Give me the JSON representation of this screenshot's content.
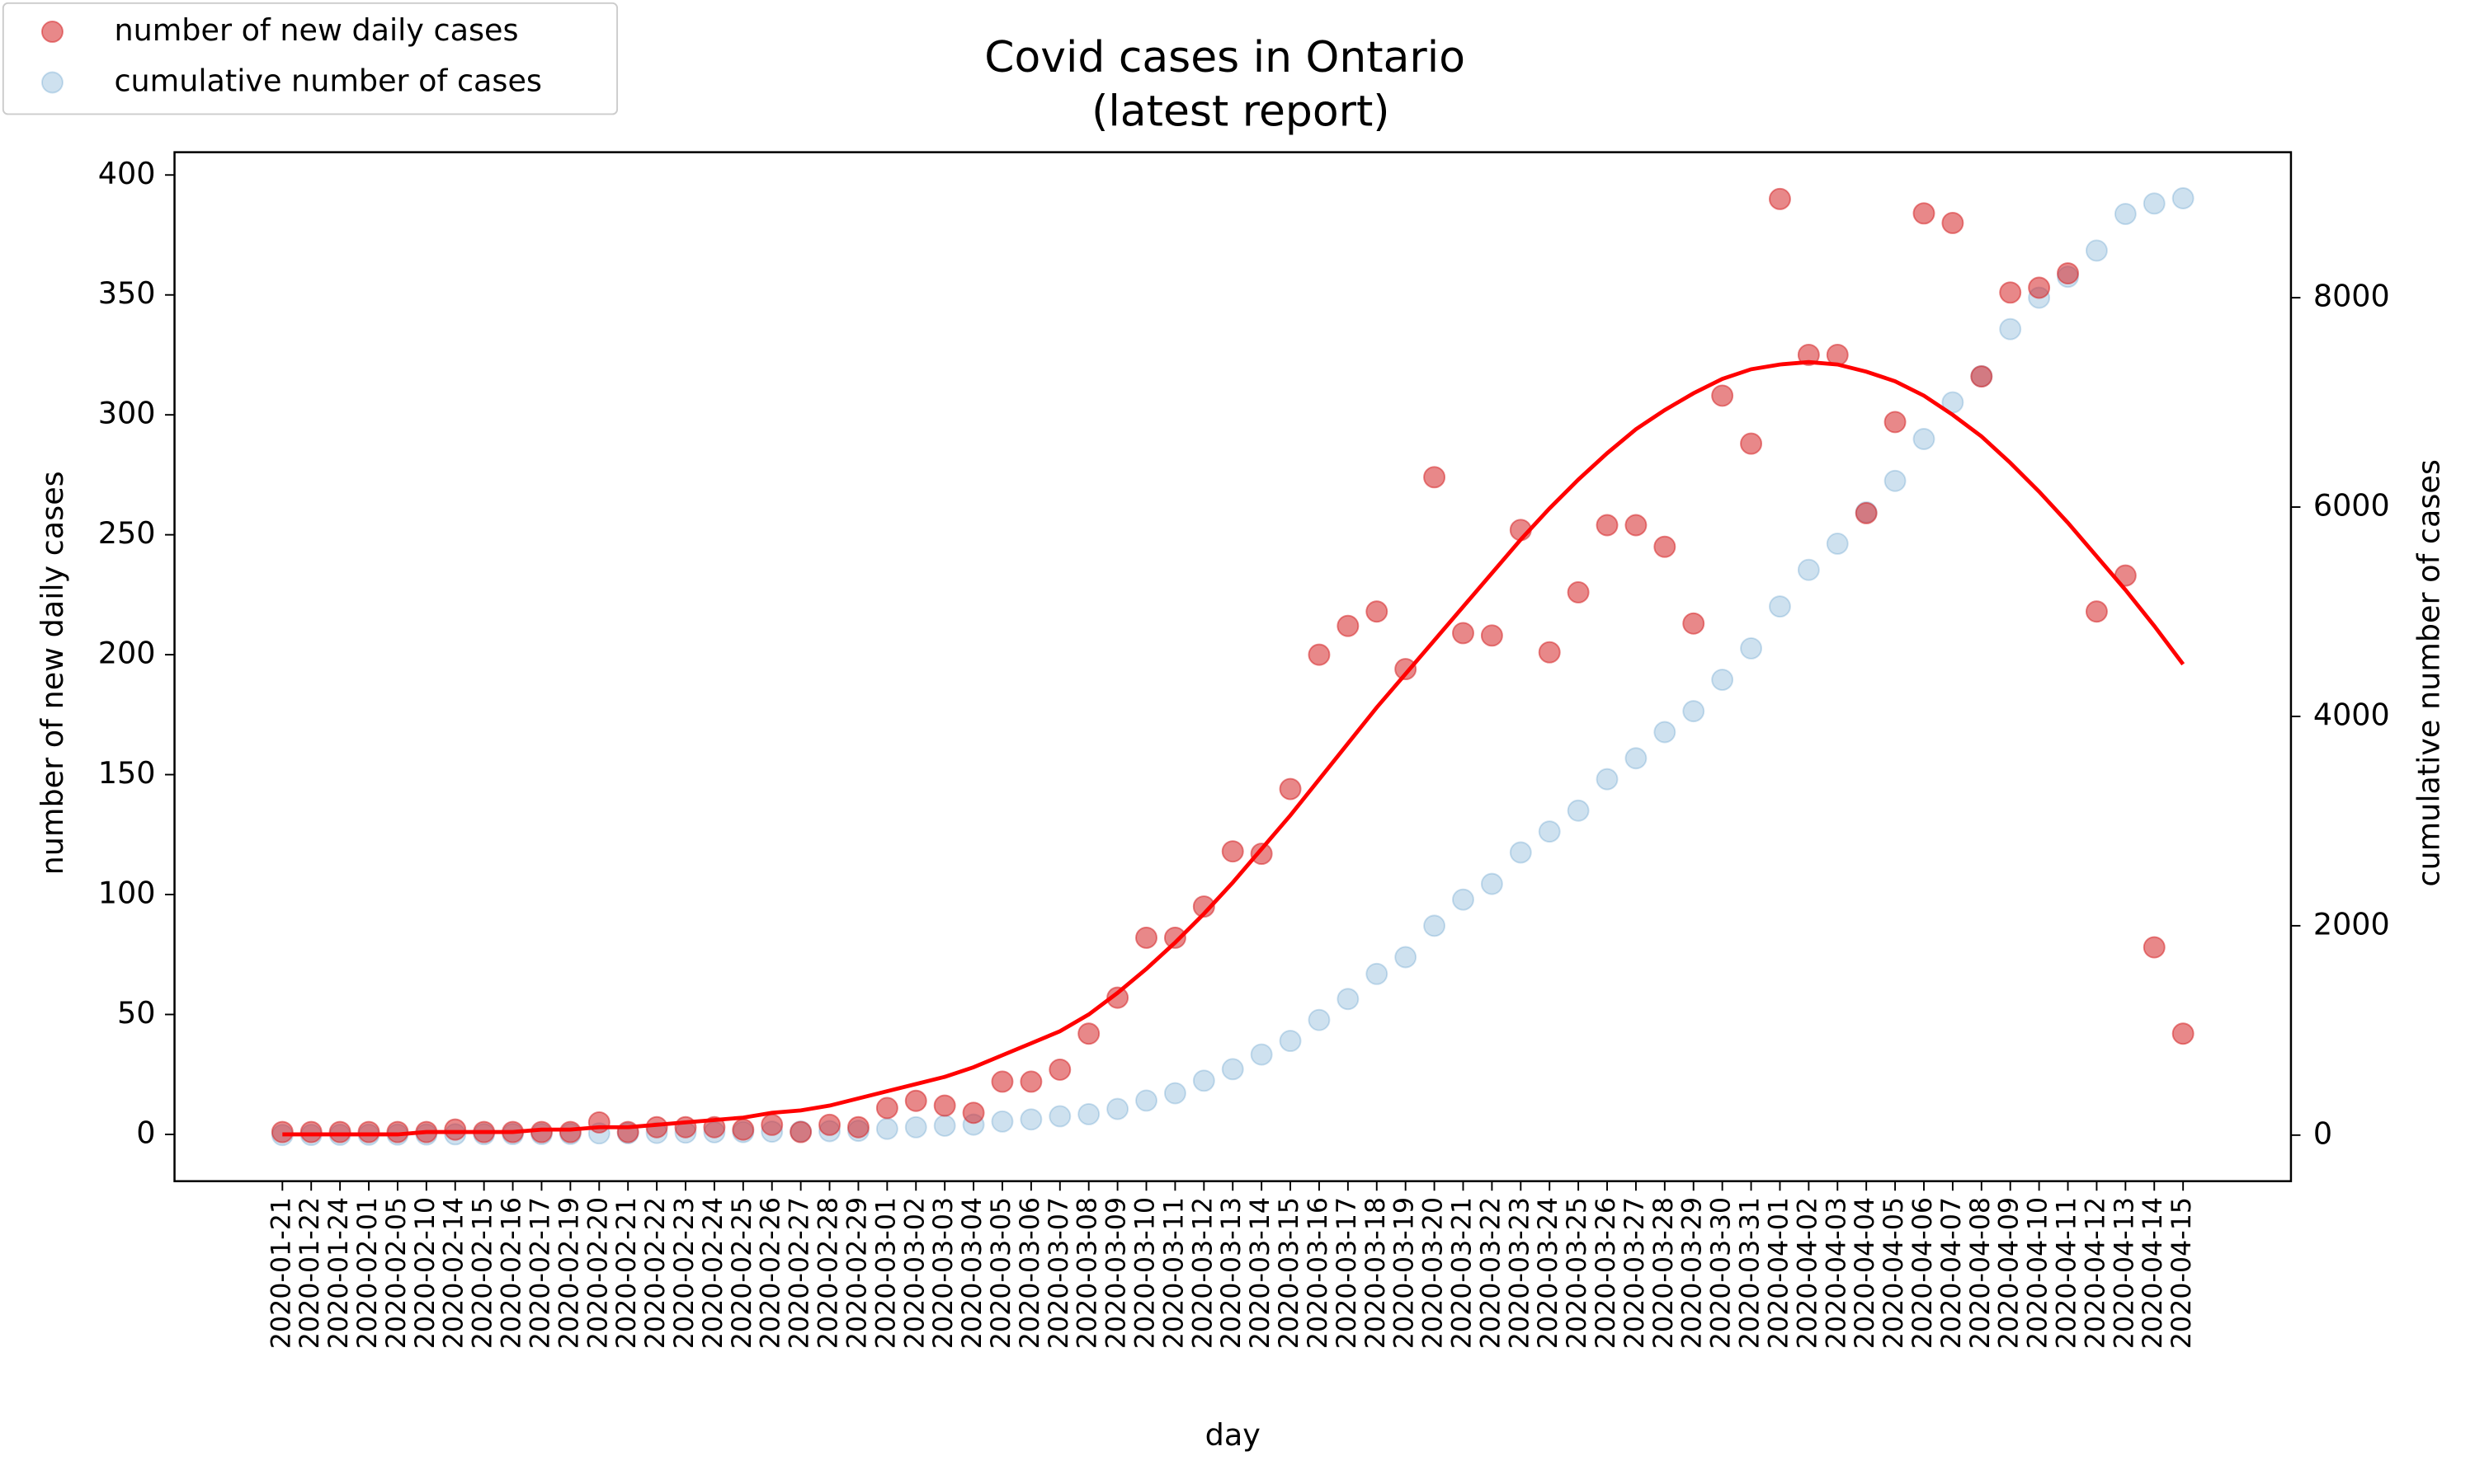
{
  "chart_data": {
    "type": "scatter",
    "title": "Covid cases in Ontario",
    "subtitle": "(latest report)",
    "xlabel": "day",
    "ylabel": "number of new daily cases",
    "y2label": "cumulative number of cases",
    "categories": [
      "2020-01-21",
      "2020-01-22",
      "2020-01-24",
      "2020-02-01",
      "2020-02-05",
      "2020-02-10",
      "2020-02-14",
      "2020-02-15",
      "2020-02-16",
      "2020-02-17",
      "2020-02-19",
      "2020-02-20",
      "2020-02-21",
      "2020-02-22",
      "2020-02-23",
      "2020-02-24",
      "2020-02-25",
      "2020-02-26",
      "2020-02-27",
      "2020-02-28",
      "2020-02-29",
      "2020-03-01",
      "2020-03-02",
      "2020-03-03",
      "2020-03-04",
      "2020-03-05",
      "2020-03-06",
      "2020-03-07",
      "2020-03-08",
      "2020-03-09",
      "2020-03-10",
      "2020-03-11",
      "2020-03-12",
      "2020-03-13",
      "2020-03-14",
      "2020-03-15",
      "2020-03-16",
      "2020-03-17",
      "2020-03-18",
      "2020-03-19",
      "2020-03-20",
      "2020-03-21",
      "2020-03-22",
      "2020-03-23",
      "2020-03-24",
      "2020-03-25",
      "2020-03-26",
      "2020-03-27",
      "2020-03-28",
      "2020-03-29",
      "2020-03-30",
      "2020-03-31",
      "2020-04-01",
      "2020-04-02",
      "2020-04-03",
      "2020-04-04",
      "2020-04-05",
      "2020-04-06",
      "2020-04-07",
      "2020-04-08",
      "2020-04-09",
      "2020-04-10",
      "2020-04-11",
      "2020-04-12",
      "2020-04-13",
      "2020-04-14",
      "2020-04-15"
    ],
    "series": [
      {
        "name": "number of new daily cases",
        "color": "#d62728",
        "opacity": 0.55,
        "axis": "y",
        "values": [
          1,
          1,
          1,
          1,
          1,
          1,
          2,
          1,
          1,
          1,
          1,
          5,
          1,
          3,
          3,
          3,
          2,
          4,
          1,
          4,
          3,
          11,
          14,
          12,
          9,
          22,
          22,
          27,
          42,
          57,
          82,
          82,
          95,
          118,
          117,
          144,
          200,
          212,
          218,
          194,
          274,
          209,
          208,
          252,
          201,
          226,
          254,
          254,
          245,
          213,
          308,
          288,
          390,
          325,
          325,
          259,
          297,
          384,
          380,
          316,
          351,
          353,
          359,
          218,
          233,
          78,
          42
        ]
      },
      {
        "name": "cumulative number of cases",
        "color": "#1f77b4",
        "opacity": 0.22,
        "axis": "y2",
        "values": [
          1,
          2,
          3,
          4,
          5,
          6,
          8,
          9,
          10,
          11,
          12,
          17,
          18,
          21,
          24,
          27,
          29,
          33,
          34,
          38,
          41,
          60,
          75,
          90,
          100,
          130,
          150,
          180,
          200,
          250,
          330,
          400,
          520,
          630,
          770,
          900,
          1100,
          1300,
          1540,
          1700,
          2000,
          2250,
          2400,
          2700,
          2900,
          3100,
          3400,
          3600,
          3850,
          4050,
          4350,
          4650,
          5050,
          5400,
          5650,
          5950,
          6250,
          6650,
          7000,
          7250,
          7700,
          8000,
          8200,
          8450,
          8800,
          8900,
          8950
        ]
      },
      {
        "color": "red",
        "style": "line",
        "axis": "y",
        "values": [
          0,
          0,
          0,
          0,
          0,
          1,
          1,
          1,
          1,
          2,
          2,
          3,
          3,
          4,
          5,
          6,
          7,
          9,
          10,
          12,
          15,
          18,
          21,
          24,
          28,
          33,
          38,
          43,
          50,
          59,
          69,
          80,
          92,
          105,
          119,
          133,
          148,
          163,
          178,
          192,
          206,
          220,
          234,
          248,
          261,
          273,
          284,
          294,
          302,
          309,
          315,
          319,
          321,
          322,
          321,
          318,
          314,
          308,
          300,
          291,
          280,
          268,
          255,
          241,
          227,
          212,
          196
        ]
      }
    ],
    "ylim": [
      -19.5,
      409.5
    ],
    "yticks": [
      0,
      50,
      100,
      150,
      200,
      250,
      300,
      350,
      400
    ],
    "y2lim": [
      -440,
      9390
    ],
    "y2ticks": [
      0,
      2000,
      4000,
      6000,
      8000
    ],
    "legend": "upper left"
  }
}
